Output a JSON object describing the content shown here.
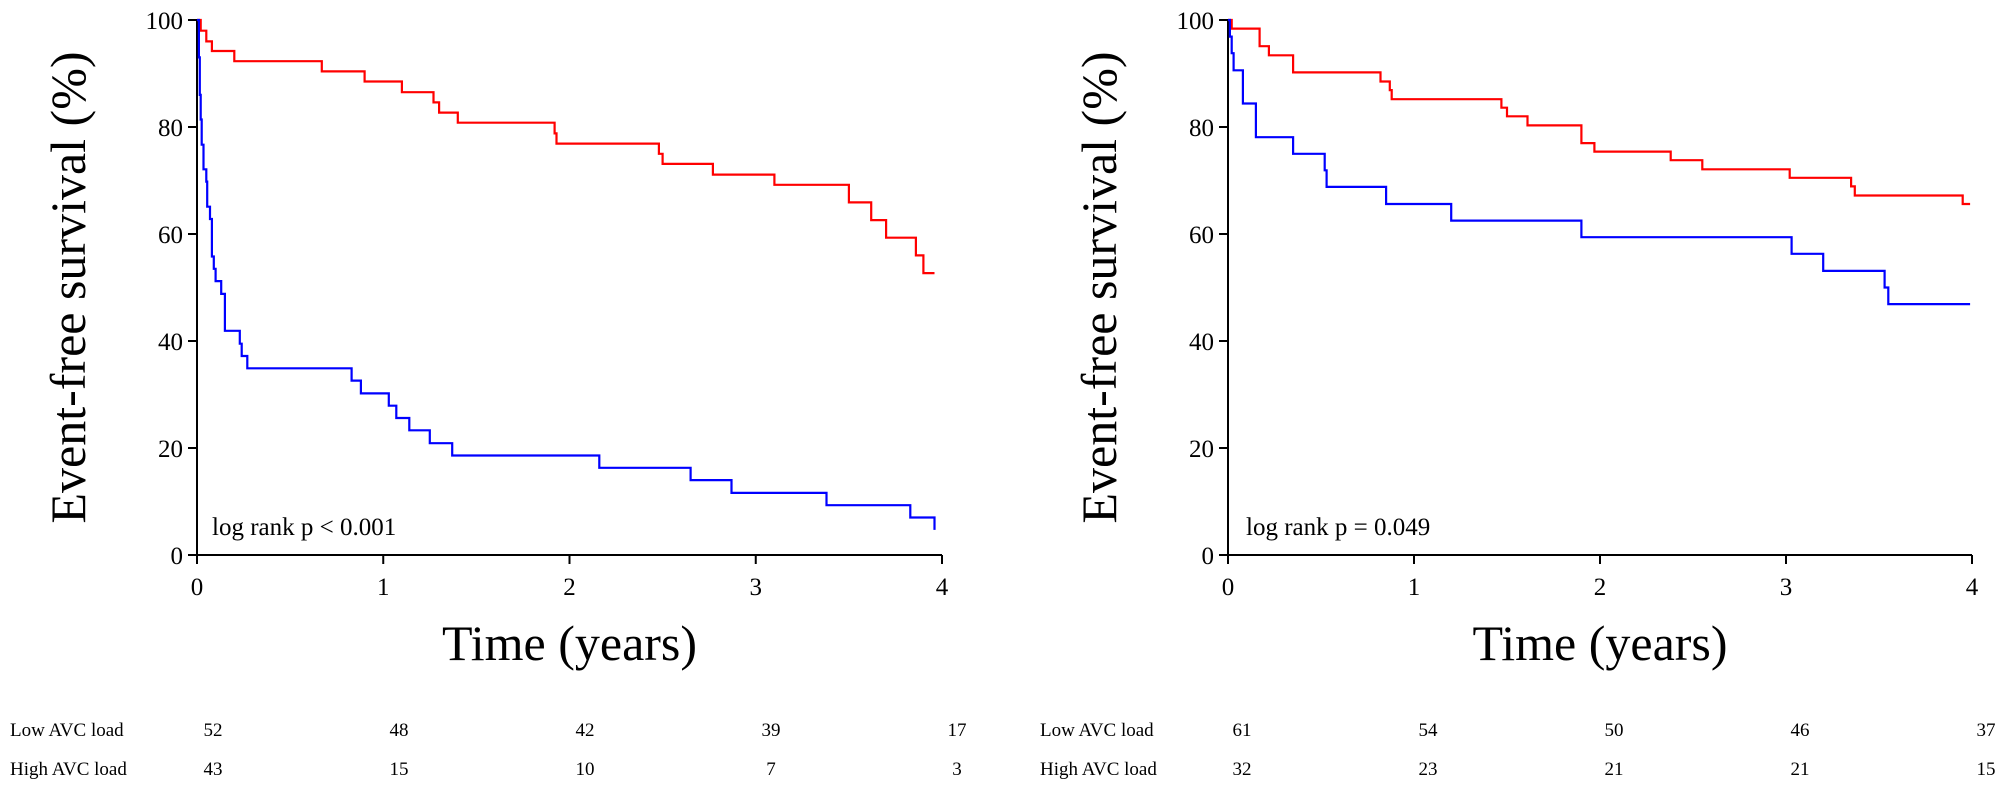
{
  "chart_data": [
    {
      "type": "line",
      "title": "",
      "xlabel": "Time (years)",
      "ylabel": "Event-free survival (%)",
      "xlim": [
        0,
        4
      ],
      "ylim": [
        0,
        100
      ],
      "xticks": [
        "0",
        "1",
        "2",
        "3",
        "4"
      ],
      "yticks": [
        "0",
        "20",
        "40",
        "60",
        "80",
        "100"
      ],
      "annotation": "log rank p < 0.001",
      "series": [
        {
          "name": "Low AVC load",
          "color": "#ff0000",
          "points": [
            [
              0,
              100
            ],
            [
              0.02,
              98
            ],
            [
              0.05,
              96
            ],
            [
              0.08,
              94.2
            ],
            [
              0.2,
              92.3
            ],
            [
              0.67,
              90.4
            ],
            [
              0.9,
              88.5
            ],
            [
              1.1,
              86.5
            ],
            [
              1.27,
              84.6
            ],
            [
              1.3,
              82.7
            ],
            [
              1.4,
              80.8
            ],
            [
              1.92,
              78.8
            ],
            [
              1.93,
              76.9
            ],
            [
              2.48,
              75
            ],
            [
              2.5,
              73.1
            ],
            [
              2.77,
              71.1
            ],
            [
              3.1,
              69.2
            ],
            [
              3.5,
              65.9
            ],
            [
              3.62,
              62.6
            ],
            [
              3.7,
              59.3
            ],
            [
              3.86,
              56
            ],
            [
              3.9,
              52.7
            ],
            [
              3.96,
              52.7
            ]
          ]
        },
        {
          "name": "High AVC load",
          "color": "#0000ff",
          "points": [
            [
              0,
              100
            ],
            [
              0.01,
              93
            ],
            [
              0.015,
              86
            ],
            [
              0.02,
              81.4
            ],
            [
              0.025,
              76.7
            ],
            [
              0.035,
              72.1
            ],
            [
              0.05,
              69.8
            ],
            [
              0.055,
              65.1
            ],
            [
              0.07,
              62.8
            ],
            [
              0.08,
              55.8
            ],
            [
              0.09,
              53.5
            ],
            [
              0.1,
              51.2
            ],
            [
              0.13,
              48.8
            ],
            [
              0.15,
              41.9
            ],
            [
              0.23,
              39.5
            ],
            [
              0.24,
              37.2
            ],
            [
              0.27,
              34.9
            ],
            [
              0.83,
              32.6
            ],
            [
              0.88,
              30.2
            ],
            [
              1.03,
              27.9
            ],
            [
              1.07,
              25.6
            ],
            [
              1.14,
              23.3
            ],
            [
              1.25,
              20.9
            ],
            [
              1.37,
              18.6
            ],
            [
              2.16,
              16.3
            ],
            [
              2.65,
              14
            ],
            [
              2.87,
              11.6
            ],
            [
              3.38,
              9.3
            ],
            [
              3.83,
              7
            ],
            [
              3.96,
              4.7
            ]
          ]
        }
      ],
      "at_risk": {
        "rows": [
          {
            "label": "Low AVC load",
            "values": [
              "52",
              "48",
              "42",
              "39",
              "17"
            ]
          },
          {
            "label": "High AVC load",
            "values": [
              "43",
              "15",
              "10",
              "7",
              "3"
            ]
          }
        ]
      }
    },
    {
      "type": "line",
      "title": "",
      "xlabel": "Time (years)",
      "ylabel": "Event-free survival (%)",
      "xlim": [
        0,
        4
      ],
      "ylim": [
        0,
        100
      ],
      "xticks": [
        "0",
        "1",
        "2",
        "3",
        "4"
      ],
      "yticks": [
        "0",
        "20",
        "40",
        "60",
        "80",
        "100"
      ],
      "annotation": "log rank p = 0.049",
      "series": [
        {
          "name": "Low AVC load",
          "color": "#ff0000",
          "points": [
            [
              0,
              100
            ],
            [
              0.02,
              98.4
            ],
            [
              0.17,
              95.1
            ],
            [
              0.22,
              93.4
            ],
            [
              0.35,
              90.2
            ],
            [
              0.82,
              88.5
            ],
            [
              0.87,
              86.9
            ],
            [
              0.88,
              85.2
            ],
            [
              1.47,
              83.6
            ],
            [
              1.5,
              82
            ],
            [
              1.61,
              80.3
            ],
            [
              1.9,
              77
            ],
            [
              1.97,
              75.4
            ],
            [
              2.38,
              73.8
            ],
            [
              2.55,
              72.1
            ],
            [
              3.02,
              70.5
            ],
            [
              3.35,
              68.9
            ],
            [
              3.37,
              67.2
            ],
            [
              3.95,
              65.6
            ],
            [
              3.99,
              65.6
            ]
          ]
        },
        {
          "name": "High AVC load",
          "color": "#0000ff",
          "points": [
            [
              0,
              100
            ],
            [
              0.01,
              96.9
            ],
            [
              0.02,
              93.8
            ],
            [
              0.03,
              90.6
            ],
            [
              0.08,
              84.4
            ],
            [
              0.15,
              78.1
            ],
            [
              0.35,
              75
            ],
            [
              0.52,
              71.9
            ],
            [
              0.53,
              68.8
            ],
            [
              0.85,
              65.6
            ],
            [
              1.2,
              62.5
            ],
            [
              1.9,
              59.4
            ],
            [
              3.03,
              56.3
            ],
            [
              3.2,
              53.1
            ],
            [
              3.53,
              50
            ],
            [
              3.55,
              46.9
            ],
            [
              3.99,
              46.9
            ]
          ]
        }
      ],
      "at_risk": {
        "rows": [
          {
            "label": "Low AVC load",
            "values": [
              "61",
              "54",
              "50",
              "46",
              "37"
            ]
          },
          {
            "label": "High AVC load",
            "values": [
              "32",
              "23",
              "21",
              "21",
              "15"
            ]
          }
        ]
      }
    }
  ]
}
